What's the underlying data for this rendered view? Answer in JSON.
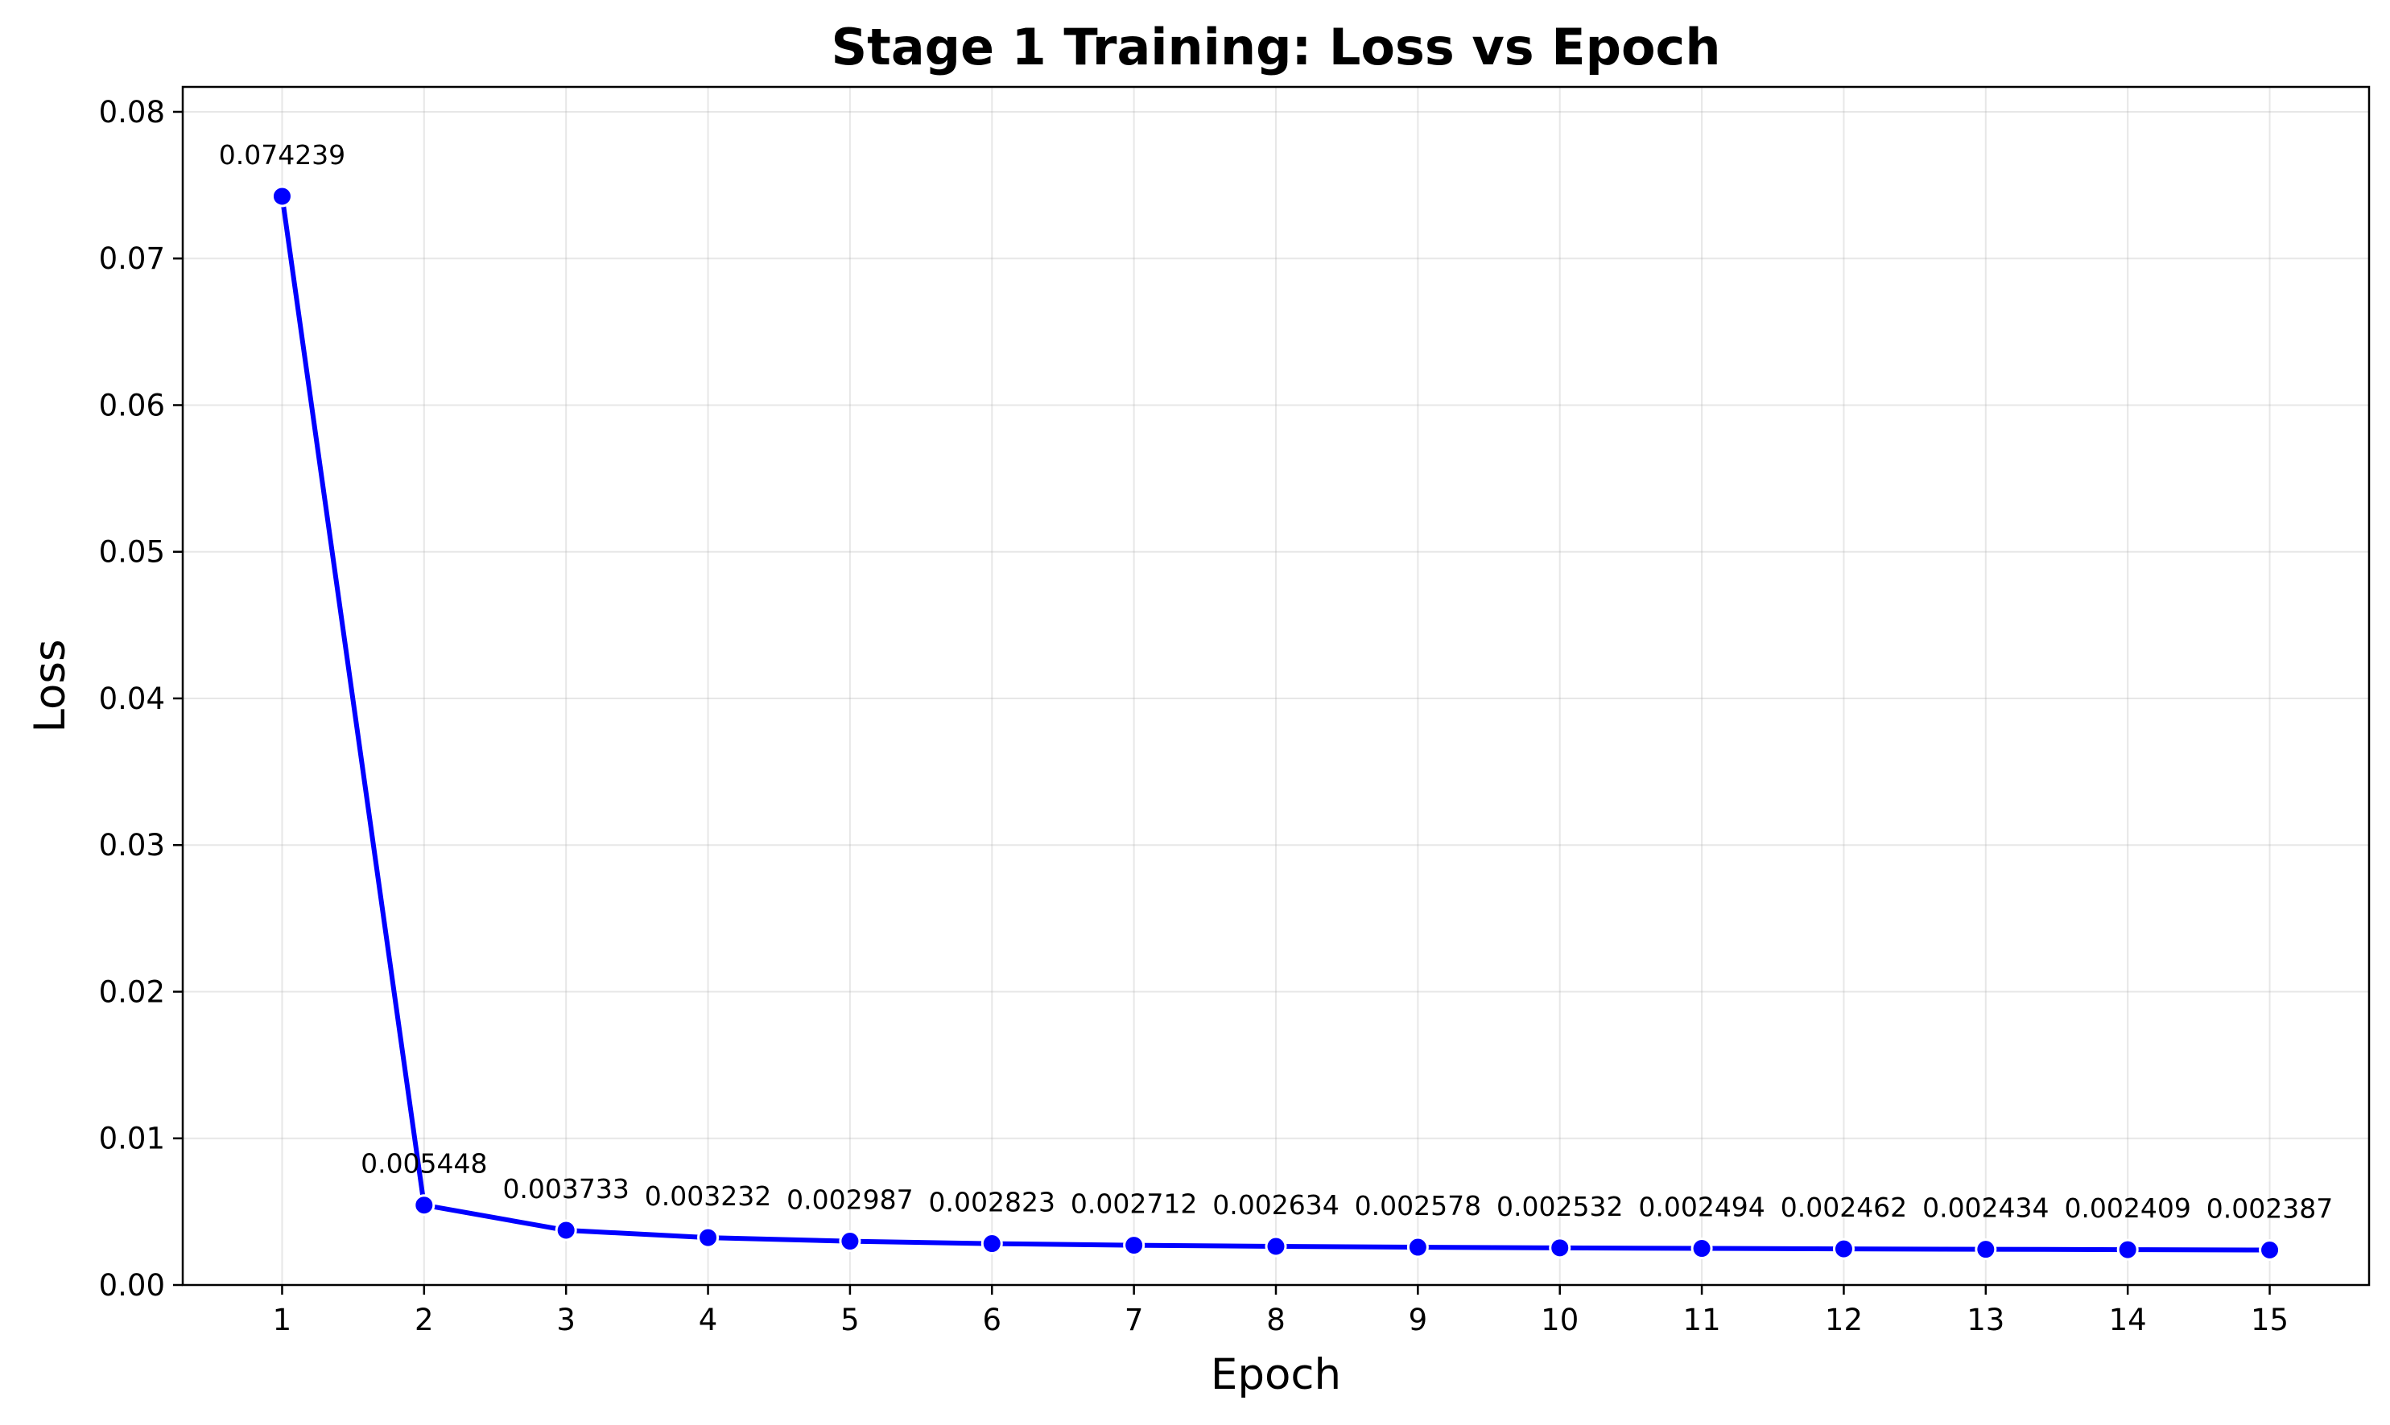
{
  "chart_data": {
    "type": "line",
    "title": "Stage 1 Training: Loss vs Epoch",
    "xlabel": "Epoch",
    "ylabel": "Loss",
    "x": [
      1,
      2,
      3,
      4,
      5,
      6,
      7,
      8,
      9,
      10,
      11,
      12,
      13,
      14,
      15
    ],
    "x_tick_labels": [
      "1",
      "2",
      "3",
      "4",
      "5",
      "6",
      "7",
      "8",
      "9",
      "10",
      "11",
      "12",
      "13",
      "14",
      "15"
    ],
    "y_ticks": [
      0.0,
      0.01,
      0.02,
      0.03,
      0.04,
      0.05,
      0.06,
      0.07,
      0.08
    ],
    "y_tick_labels": [
      "0.00",
      "0.01",
      "0.02",
      "0.03",
      "0.04",
      "0.05",
      "0.06",
      "0.07",
      "0.08"
    ],
    "xlim": [
      0.3,
      15.7
    ],
    "ylim": [
      0.0,
      0.0817
    ],
    "grid": true,
    "legend": "none",
    "series": [
      {
        "values": [
          0.074239,
          0.005448,
          0.003733,
          0.003232,
          0.002987,
          0.002823,
          0.002712,
          0.002634,
          0.002578,
          0.002532,
          0.002494,
          0.002462,
          0.002434,
          0.002409,
          0.002387
        ],
        "labels": [
          "0.074239",
          "0.005448",
          "0.003733",
          "0.003232",
          "0.002987",
          "0.002823",
          "0.002712",
          "0.002634",
          "0.002578",
          "0.002532",
          "0.002494",
          "0.002462",
          "0.002434",
          "0.002409",
          "0.002387"
        ],
        "color": "#0000ff"
      }
    ]
  }
}
